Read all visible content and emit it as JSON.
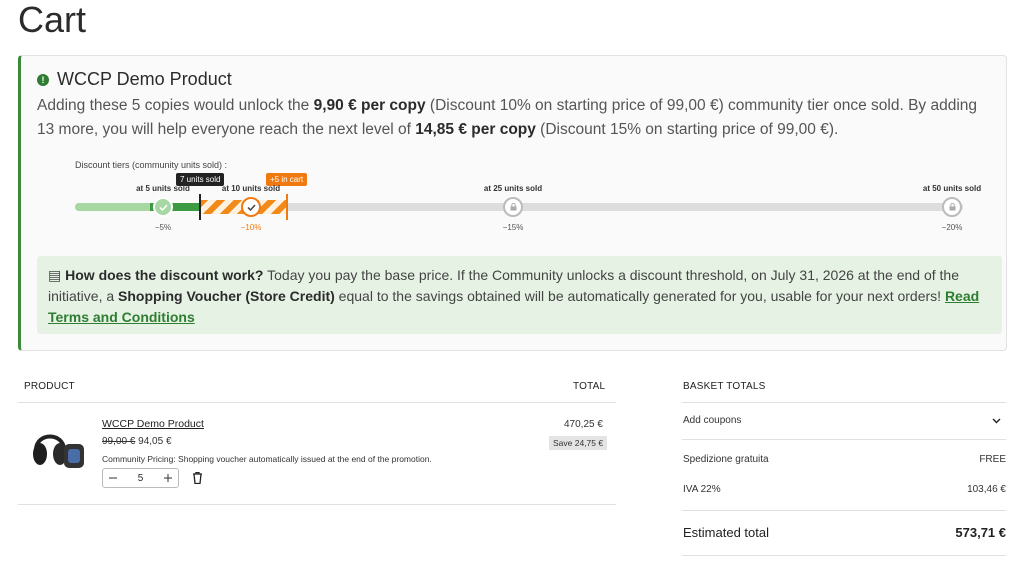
{
  "page": {
    "title": "Cart"
  },
  "notice": {
    "product": "WCCP Demo Product",
    "message": [
      "Adding these 5 copies would unlock the ",
      "9,90 € per copy",
      " (Discount 10% on starting price of 99,00 €) community tier once sold. By adding 13 more, you will help everyone reach the next level of ",
      "14,85 € per copy",
      " (Discount 15% on starting price of 99,00 €)."
    ],
    "tiers_label": "Discount tiers (community units sold) :",
    "tiers": [
      {
        "label": "at 5 units sold",
        "discount": "−5%"
      },
      {
        "label": "at 10 units sold",
        "discount": "−10%"
      },
      {
        "label": "at 25 units sold",
        "discount": "−15%"
      },
      {
        "label": "at 50 units sold",
        "discount": "−20%"
      }
    ],
    "sold_badge": "7 units sold",
    "cart_badge": "+5 in cart",
    "info": [
      "How does the discount work?",
      " Today you pay the base price. If the Community unlocks a discount threshold, on July 31, 2026 at the end of the initiative, a ",
      "Shopping Voucher (Store Credit)",
      " equal to the savings obtained will be automatically generated for you, usable for your next orders! ",
      "Read Terms and Conditions"
    ]
  },
  "cart": {
    "headers": [
      "PRODUCT",
      "TOTAL"
    ],
    "item": {
      "name": "WCCP Demo Product",
      "old_price": "99,00 €",
      "price": "94,05 €",
      "note": "Community Pricing: Shopping voucher automatically issued at the end of the promotion.",
      "quantity": "5",
      "total": "470,25 €",
      "savings": "Save 24,75 €"
    }
  },
  "totals": {
    "title": "BASKET TOTALS",
    "coupons": "Add coupons",
    "rows": [
      [
        "Spedizione gratuita",
        "FREE"
      ],
      [
        "IVA 22%",
        "103,46 €"
      ]
    ],
    "estimated": [
      "Estimated total",
      "573,71 €"
    ]
  }
}
